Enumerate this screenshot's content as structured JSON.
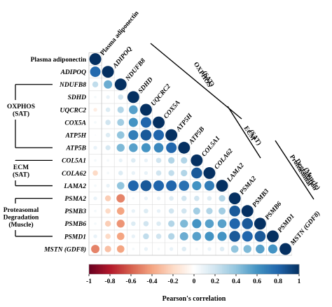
{
  "chart_data": {
    "type": "heatmap",
    "title": "",
    "variables": [
      "Plasma adiponectin",
      "ADIPOQ",
      "NDUFB8",
      "SDHD",
      "UQCRC2",
      "COX5A",
      "ATP5H",
      "ATP5B",
      "COL5A1",
      "COLA62",
      "LAMA2",
      "PSMA2",
      "PSMB3",
      "PSMB6",
      "PSMD1",
      "MSTN (GDF8)"
    ],
    "row_labels": [
      "Plasma adiponectin",
      "ADIPOQ",
      "NDUFB8",
      "SDHD",
      "UQCRC2",
      "COX5A",
      "ATP5H",
      "ATP5B",
      "COL5A1",
      "COLA62",
      "LAMA2",
      "PSMA2",
      "PSMB3",
      "PSMB6",
      "PSMD1",
      "MSTN (GDF8)"
    ],
    "diag_labels": [
      "Plasma adiponectin",
      "ADIPOQ",
      "NDUFB8",
      "SDHD",
      "UQCRC2",
      "COX5A",
      "ATP5H",
      "ATP5B",
      "COL5A1",
      "COLA62",
      "LAMA2",
      "PSMA2",
      "PSMB3",
      "PSMB6",
      "PSMD1",
      "MSTN (GDF8)"
    ],
    "row_italic": [
      false,
      true,
      true,
      true,
      true,
      true,
      true,
      true,
      true,
      true,
      true,
      true,
      true,
      true,
      true,
      true
    ],
    "matrix": [
      [
        1.0
      ],
      [
        0.78,
        1.0
      ],
      [
        0.25,
        0.5,
        1.0
      ],
      [
        0.05,
        0.1,
        0.2,
        1.0
      ],
      [
        -0.1,
        0.15,
        0.3,
        0.55,
        1.0
      ],
      [
        0.05,
        0.2,
        0.35,
        0.6,
        0.8,
        1.0
      ],
      [
        0.02,
        0.15,
        0.4,
        0.7,
        0.85,
        0.8,
        1.0
      ],
      [
        0.1,
        0.18,
        0.45,
        0.55,
        0.6,
        0.65,
        0.8,
        1.0
      ],
      [
        0.05,
        0.05,
        0.1,
        0.15,
        0.1,
        0.2,
        0.3,
        0.3,
        1.0
      ],
      [
        -0.2,
        0.05,
        0.15,
        0.1,
        0.1,
        0.2,
        0.25,
        0.3,
        0.85,
        1.0
      ],
      [
        0.05,
        0.1,
        0.4,
        0.8,
        0.85,
        0.8,
        0.8,
        0.75,
        0.6,
        0.7,
        1.0
      ],
      [
        0.1,
        -0.25,
        -0.5,
        0.05,
        0.1,
        0.1,
        0.15,
        0.2,
        0.2,
        0.15,
        0.3,
        1.0
      ],
      [
        0.05,
        -0.2,
        -0.4,
        0.1,
        0.15,
        0.1,
        0.2,
        0.2,
        0.35,
        0.3,
        0.35,
        0.85,
        1.0
      ],
      [
        0.05,
        -0.25,
        -0.45,
        0.15,
        0.2,
        0.15,
        0.3,
        0.45,
        0.6,
        0.55,
        0.55,
        0.8,
        0.85,
        1.0
      ],
      [
        0.1,
        -0.2,
        -0.4,
        0.1,
        0.25,
        0.2,
        0.3,
        0.5,
        0.55,
        0.6,
        0.6,
        0.85,
        0.8,
        0.85,
        1.0
      ],
      [
        -0.5,
        -0.3,
        -0.4,
        0.05,
        0.1,
        0.05,
        0.1,
        0.15,
        0.05,
        0.1,
        0.15,
        0.4,
        0.45,
        0.55,
        0.6,
        1.0
      ]
    ],
    "groups_left": [
      {
        "name": "OXPHOS\n(SAT)"
      },
      {
        "name": "ECM\n(SAT)"
      },
      {
        "name": "Proteasomal\nDegradation\n(Muscle)"
      }
    ],
    "groups_diag": [
      {
        "name": "OXPHOS\n(SAT)"
      },
      {
        "name": "ECM\n(SAT)"
      },
      {
        "name": "Proteasomal\nDegradation\n(Muscle)"
      }
    ],
    "colorbar": {
      "min": -1,
      "max": 1,
      "ticks": [
        "-1",
        "-0.8",
        "-0.6",
        "-0.4",
        "-0.2",
        "0",
        "0.2",
        "0.4",
        "0.6",
        "0.8",
        "1"
      ],
      "label": "Pearson's correlation",
      "colors": [
        "#67001f",
        "#b2182b",
        "#d6604d",
        "#f4a582",
        "#fddbc7",
        "#ffffff",
        "#d1e5f0",
        "#92c5de",
        "#4393c3",
        "#2166ac",
        "#053061"
      ]
    },
    "legend_placement": "bottom"
  }
}
